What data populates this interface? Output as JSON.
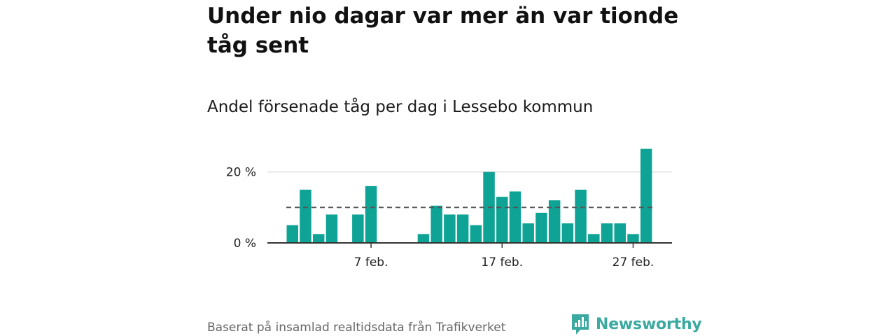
{
  "title": "Under nio dagar var mer än var tionde tåg sent",
  "subtitle": "Andel försenade tåg per dag i Lessebo kommun",
  "source": "Baserat på insamlad realtidsdata från Trafikverket",
  "brand": {
    "name": "Newsworthy",
    "color": "#3aa99f",
    "icon": "bar-chart-speech-bubble-icon"
  },
  "colors": {
    "bar": "#0fa396",
    "grid": "#d9d9d9",
    "axis": "#333333",
    "reference": "#555555"
  },
  "chart_data": {
    "type": "bar",
    "unit": "%",
    "x": [
      1,
      2,
      3,
      4,
      5,
      6,
      7,
      8,
      9,
      10,
      11,
      12,
      13,
      14,
      15,
      16,
      17,
      18,
      19,
      20,
      21,
      22,
      23,
      24,
      25,
      26,
      27,
      28
    ],
    "values": [
      5,
      15,
      2.5,
      8,
      0,
      8,
      16,
      0,
      0,
      0,
      2.5,
      10.5,
      8,
      8,
      5,
      20,
      13,
      14.5,
      5.5,
      8.5,
      12,
      5.5,
      15,
      2.5,
      5.5,
      5.5,
      2.5,
      26.5
    ],
    "x_ticks": [
      {
        "x": 7,
        "label": "7 feb."
      },
      {
        "x": 17,
        "label": "17 feb."
      },
      {
        "x": 27,
        "label": "27 feb."
      }
    ],
    "y_ticks": [
      {
        "value": 0,
        "label": "0 %"
      },
      {
        "value": 20,
        "label": "20 %"
      }
    ],
    "ylim": [
      0,
      27
    ],
    "reference_line": {
      "value": 10,
      "style": "dashed"
    },
    "grid": true,
    "xlabel": "",
    "ylabel": ""
  }
}
